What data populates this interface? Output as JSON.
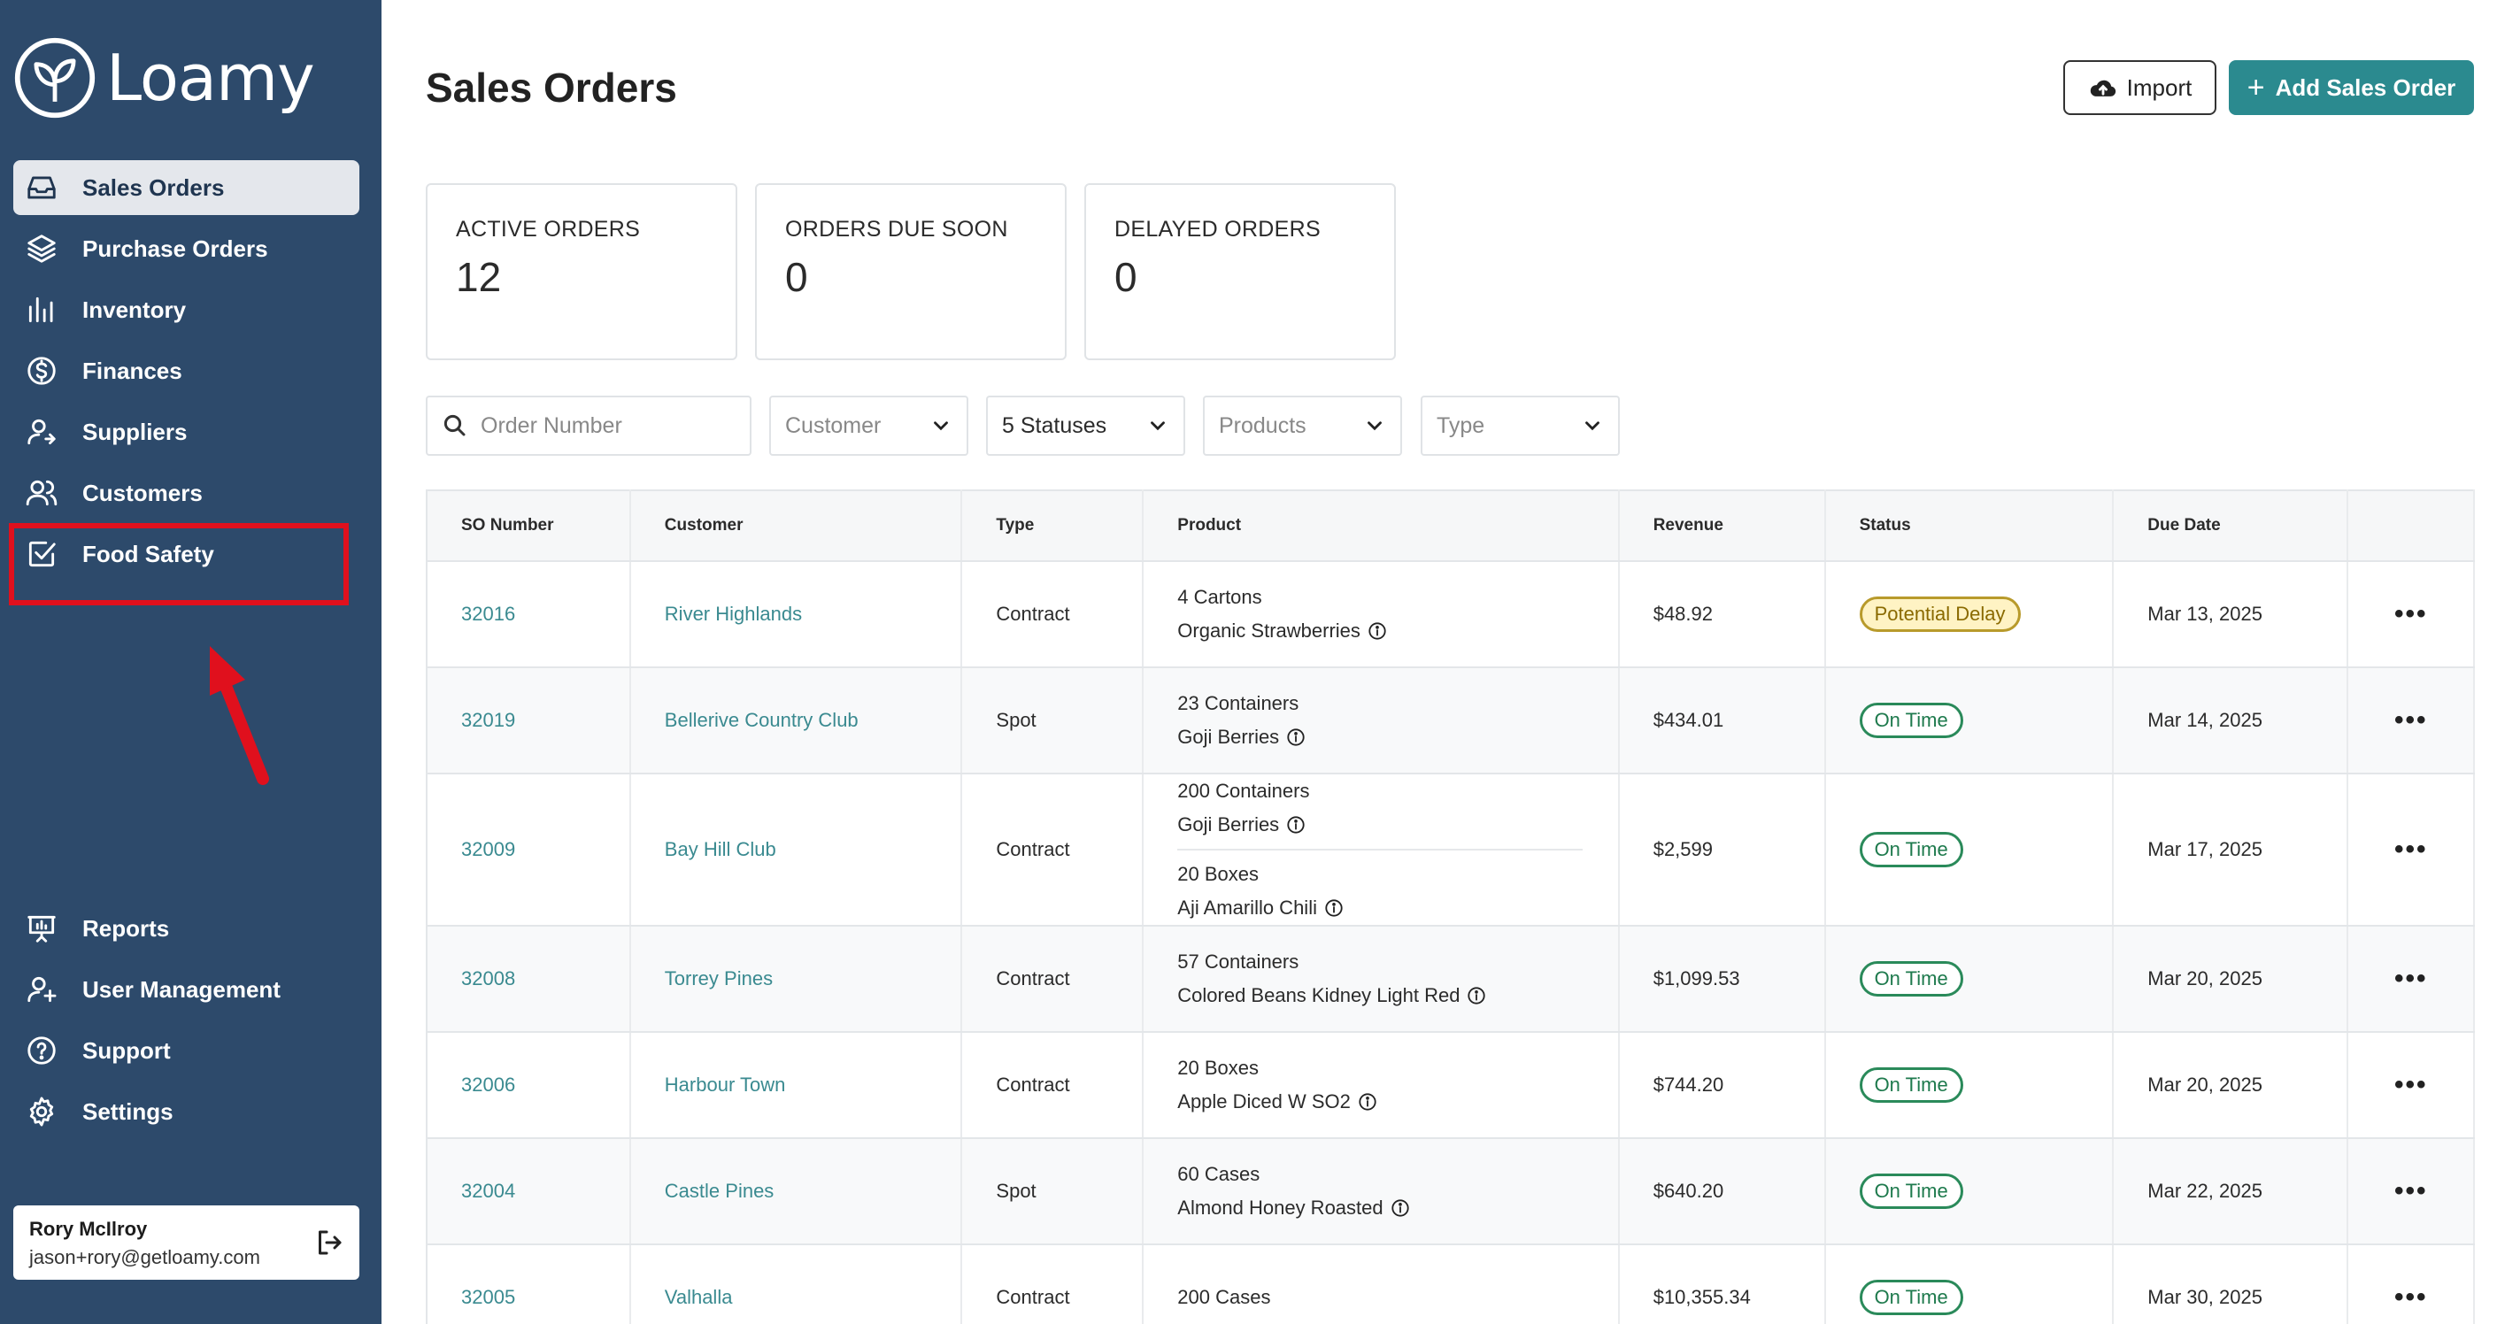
{
  "app": {
    "name": "Loamy"
  },
  "sidebar": {
    "top_items": [
      {
        "label": "Sales Orders",
        "icon": "inbox-icon",
        "active": true
      },
      {
        "label": "Purchase Orders",
        "icon": "layers-icon"
      },
      {
        "label": "Inventory",
        "icon": "bar-chart-icon"
      },
      {
        "label": "Finances",
        "icon": "dollar-circle-icon"
      },
      {
        "label": "Suppliers",
        "icon": "user-arrow-icon"
      },
      {
        "label": "Customers",
        "icon": "users-icon"
      },
      {
        "label": "Food Safety",
        "icon": "checkbox-icon"
      }
    ],
    "bottom_items": [
      {
        "label": "Reports",
        "icon": "presentation-icon"
      },
      {
        "label": "User Management",
        "icon": "user-plus-icon"
      },
      {
        "label": "Support",
        "icon": "help-circle-icon"
      },
      {
        "label": "Settings",
        "icon": "gear-icon"
      }
    ],
    "user": {
      "name": "Rory McIlroy",
      "email": "jason+rory@getloamy.com"
    }
  },
  "header": {
    "title": "Sales Orders",
    "import_label": "Import",
    "add_label": "Add Sales Order"
  },
  "stats": [
    {
      "label": "ACTIVE ORDERS",
      "value": "12"
    },
    {
      "label": "ORDERS DUE SOON",
      "value": "0"
    },
    {
      "label": "DELAYED ORDERS",
      "value": "0"
    }
  ],
  "filters": {
    "search_placeholder": "Order Number",
    "customer": "Customer",
    "statuses": "5 Statuses",
    "products": "Products",
    "type": "Type"
  },
  "table": {
    "columns": [
      "SO Number",
      "Customer",
      "Type",
      "Product",
      "Revenue",
      "Status",
      "Due Date"
    ],
    "rows": [
      {
        "so": "32016",
        "customer": "River Highlands",
        "type": "Contract",
        "products": [
          {
            "qty": "4 Cartons",
            "name": "Organic Strawberries"
          }
        ],
        "revenue": "$48.92",
        "status": "Potential Delay",
        "status_kind": "delay",
        "due": "Mar 13, 2025"
      },
      {
        "so": "32019",
        "customer": "Bellerive Country Club",
        "type": "Spot",
        "products": [
          {
            "qty": "23 Containers",
            "name": "Goji Berries"
          }
        ],
        "revenue": "$434.01",
        "status": "On Time",
        "status_kind": "ontime",
        "due": "Mar 14, 2025"
      },
      {
        "so": "32009",
        "customer": "Bay Hill Club",
        "type": "Contract",
        "products": [
          {
            "qty": "200 Containers",
            "name": "Goji Berries"
          },
          {
            "qty": "20 Boxes",
            "name": "Aji Amarillo Chili"
          }
        ],
        "revenue": "$2,599",
        "status": "On Time",
        "status_kind": "ontime",
        "due": "Mar 17, 2025"
      },
      {
        "so": "32008",
        "customer": "Torrey Pines",
        "type": "Contract",
        "products": [
          {
            "qty": "57 Containers",
            "name": "Colored Beans Kidney Light Red"
          }
        ],
        "revenue": "$1,099.53",
        "status": "On Time",
        "status_kind": "ontime",
        "due": "Mar 20, 2025"
      },
      {
        "so": "32006",
        "customer": "Harbour Town",
        "type": "Contract",
        "products": [
          {
            "qty": "20 Boxes",
            "name": "Apple Diced W SO2"
          }
        ],
        "revenue": "$744.20",
        "status": "On Time",
        "status_kind": "ontime",
        "due": "Mar 20, 2025"
      },
      {
        "so": "32004",
        "customer": "Castle Pines",
        "type": "Spot",
        "products": [
          {
            "qty": "60 Cases",
            "name": "Almond Honey Roasted"
          }
        ],
        "revenue": "$640.20",
        "status": "On Time",
        "status_kind": "ontime",
        "due": "Mar 22, 2025"
      },
      {
        "so": "32005",
        "customer": "Valhalla",
        "type": "Contract",
        "products": [
          {
            "qty": "200 Cases",
            "name": ""
          }
        ],
        "revenue": "$10,355.34",
        "status": "On Time",
        "status_kind": "ontime",
        "due": "Mar 30, 2025"
      }
    ]
  },
  "colors": {
    "sidebar": "#2d4a6b",
    "accent": "#2b8a8f",
    "link": "#3a8a90",
    "highlight": "#e0101d"
  }
}
